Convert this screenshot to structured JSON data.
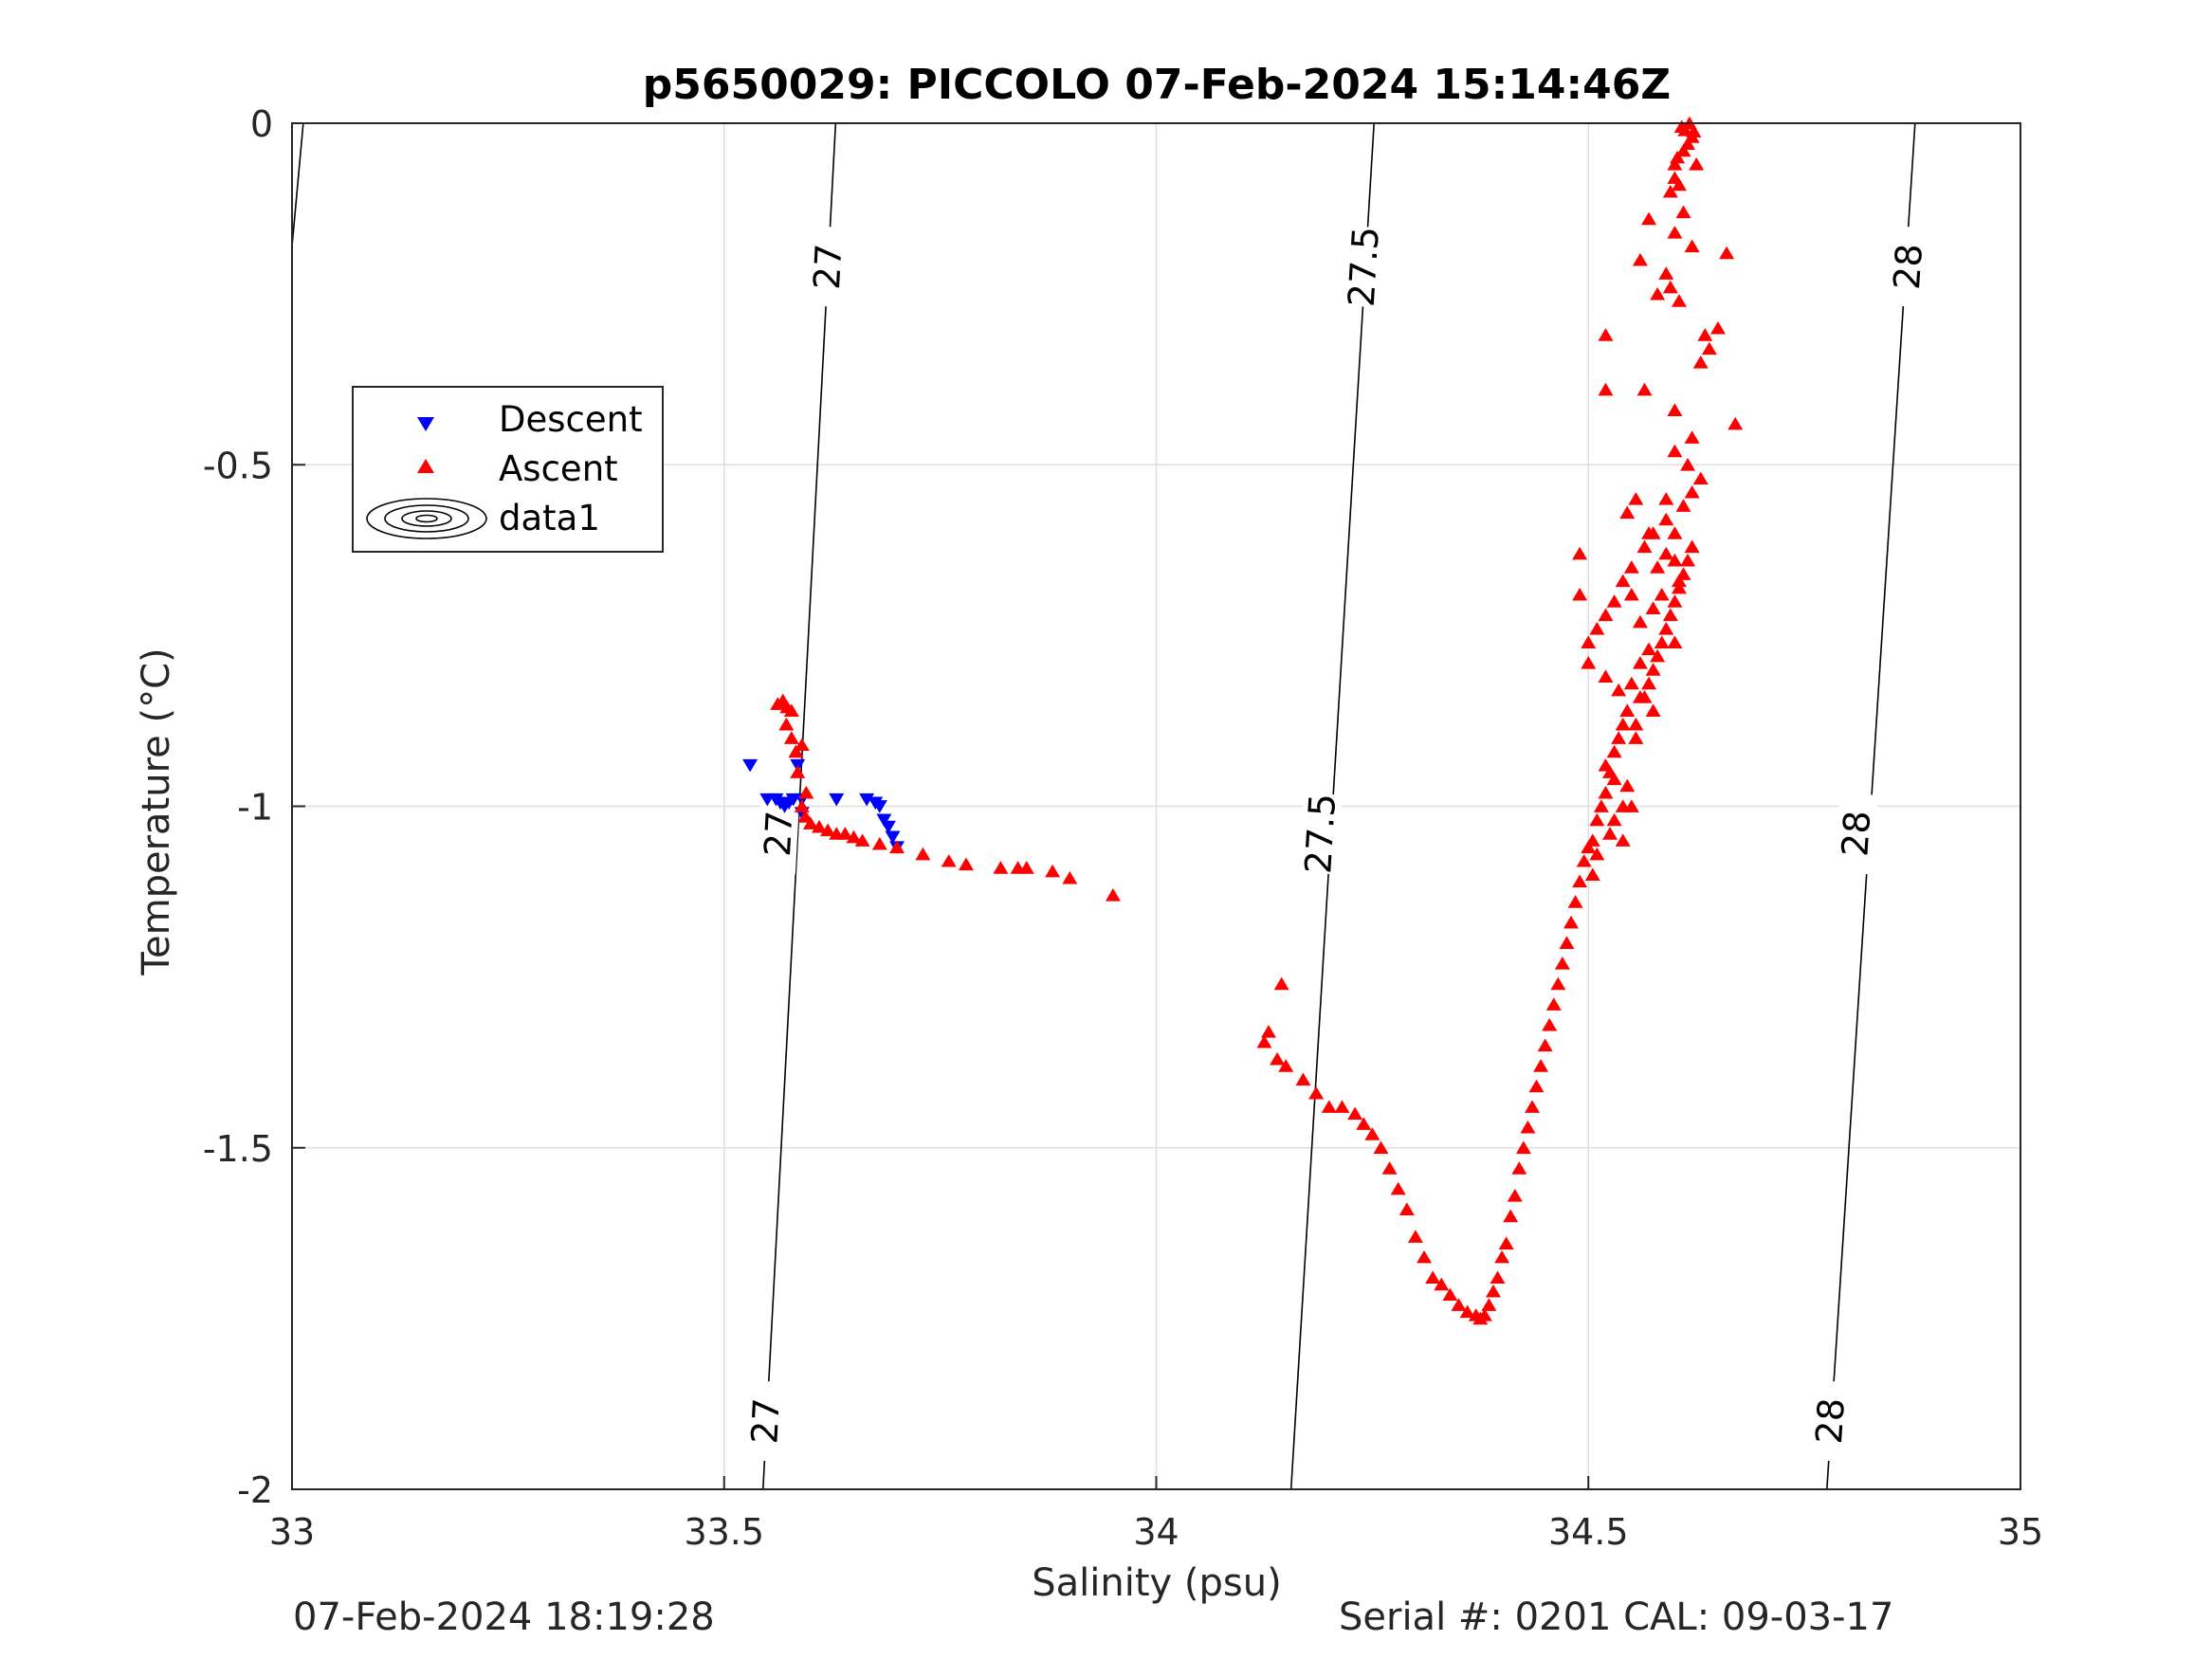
{
  "chart_data": {
    "type": "scatter",
    "title": "p5650029: PICCOLO 07-Feb-2024 15:14:46Z",
    "xlabel": "Salinity (psu)",
    "ylabel": "Temperature (°C)",
    "xlim": [
      33,
      35
    ],
    "ylim": [
      -2,
      0
    ],
    "xticks": [
      33,
      33.5,
      34,
      34.5,
      35
    ],
    "xtick_labels": [
      "33",
      "33.5",
      "34",
      "34.5",
      "35"
    ],
    "yticks": [
      0,
      -0.5,
      -1,
      -1.5,
      -2
    ],
    "ytick_labels": [
      "0",
      "-0.5",
      "-1",
      "-1.5",
      "-2"
    ],
    "grid": true,
    "legend": {
      "placement": "upper-left",
      "entries": [
        "Descent",
        "Ascent",
        "data1"
      ]
    },
    "colors": {
      "descent": "#0000ff",
      "ascent": "#ff0000",
      "contour": "#000000",
      "grid": "#dfdfdf"
    },
    "contours": [
      {
        "label": "27",
        "points": [
          [
            33.545,
            -2.0
          ],
          [
            33.629,
            0.0
          ]
        ],
        "label_positions": [
          [
            33.548,
            -1.9
          ],
          [
            33.563,
            -1.04
          ],
          [
            33.62,
            -0.21
          ]
        ]
      },
      {
        "label": "27.5",
        "points": [
          [
            34.156,
            -2.0
          ],
          [
            34.252,
            0.0
          ]
        ],
        "label_positions": [
          [
            34.19,
            -1.04
          ],
          [
            34.24,
            -0.21
          ]
        ]
      },
      {
        "label": "28",
        "points": [
          [
            34.776,
            -2.0
          ],
          [
            34.878,
            0.0
          ]
        ],
        "label_positions": [
          [
            34.78,
            -1.9
          ],
          [
            34.81,
            -1.04
          ],
          [
            34.87,
            -0.21
          ]
        ]
      },
      {
        "label": "",
        "points": [
          [
            33.0,
            -0.18
          ],
          [
            33.013,
            0.0
          ]
        ],
        "label_positions": []
      }
    ],
    "series": [
      {
        "name": "Descent",
        "marker": "triangle-down",
        "points": [
          [
            33.53,
            -0.94
          ],
          [
            33.55,
            -0.99
          ],
          [
            33.56,
            -0.99
          ],
          [
            33.565,
            -0.995
          ],
          [
            33.57,
            -1.0
          ],
          [
            33.575,
            -0.995
          ],
          [
            33.58,
            -0.99
          ],
          [
            33.585,
            -0.94
          ],
          [
            33.59,
            -0.99
          ],
          [
            33.63,
            -0.99
          ],
          [
            33.665,
            -0.99
          ],
          [
            33.675,
            -0.995
          ],
          [
            33.68,
            -1.0
          ],
          [
            33.685,
            -1.02
          ],
          [
            33.69,
            -1.03
          ],
          [
            33.695,
            -1.045
          ],
          [
            33.7,
            -1.06
          ],
          [
            33.59,
            -1.01
          ]
        ]
      },
      {
        "name": "Ascent",
        "marker": "triangle-up",
        "points": [
          [
            33.562,
            -0.85
          ],
          [
            33.568,
            -0.845
          ],
          [
            33.573,
            -0.855
          ],
          [
            33.578,
            -0.86
          ],
          [
            33.572,
            -0.88
          ],
          [
            33.578,
            -0.9
          ],
          [
            33.583,
            -0.92
          ],
          [
            33.59,
            -0.91
          ],
          [
            33.585,
            -0.95
          ],
          [
            33.595,
            -0.98
          ],
          [
            33.59,
            -1.0
          ],
          [
            33.594,
            -1.015
          ],
          [
            33.6,
            -1.025
          ],
          [
            33.61,
            -1.03
          ],
          [
            33.62,
            -1.035
          ],
          [
            33.63,
            -1.04
          ],
          [
            33.64,
            -1.04
          ],
          [
            33.65,
            -1.045
          ],
          [
            33.66,
            -1.05
          ],
          [
            33.68,
            -1.055
          ],
          [
            33.7,
            -1.06
          ],
          [
            33.73,
            -1.07
          ],
          [
            33.76,
            -1.08
          ],
          [
            33.78,
            -1.085
          ],
          [
            33.82,
            -1.09
          ],
          [
            33.84,
            -1.09
          ],
          [
            33.85,
            -1.09
          ],
          [
            33.88,
            -1.095
          ],
          [
            33.9,
            -1.105
          ],
          [
            33.95,
            -1.13
          ],
          [
            34.13,
            -1.33
          ],
          [
            34.125,
            -1.345
          ],
          [
            34.145,
            -1.26
          ],
          [
            34.14,
            -1.37
          ],
          [
            34.15,
            -1.38
          ],
          [
            34.17,
            -1.4
          ],
          [
            34.185,
            -1.42
          ],
          [
            34.2,
            -1.44
          ],
          [
            34.215,
            -1.44
          ],
          [
            34.23,
            -1.45
          ],
          [
            34.24,
            -1.465
          ],
          [
            34.25,
            -1.48
          ],
          [
            34.26,
            -1.5
          ],
          [
            34.27,
            -1.53
          ],
          [
            34.28,
            -1.56
          ],
          [
            34.29,
            -1.59
          ],
          [
            34.3,
            -1.63
          ],
          [
            34.31,
            -1.66
          ],
          [
            34.32,
            -1.69
          ],
          [
            34.33,
            -1.7
          ],
          [
            34.34,
            -1.715
          ],
          [
            34.35,
            -1.73
          ],
          [
            34.36,
            -1.74
          ],
          [
            34.37,
            -1.745
          ],
          [
            34.375,
            -1.75
          ],
          [
            34.38,
            -1.745
          ],
          [
            34.385,
            -1.73
          ],
          [
            34.39,
            -1.71
          ],
          [
            34.395,
            -1.69
          ],
          [
            34.4,
            -1.66
          ],
          [
            34.405,
            -1.64
          ],
          [
            34.41,
            -1.6
          ],
          [
            34.415,
            -1.57
          ],
          [
            34.42,
            -1.53
          ],
          [
            34.425,
            -1.5
          ],
          [
            34.43,
            -1.47
          ],
          [
            34.435,
            -1.44
          ],
          [
            34.44,
            -1.41
          ],
          [
            34.445,
            -1.38
          ],
          [
            34.45,
            -1.35
          ],
          [
            34.455,
            -1.32
          ],
          [
            34.46,
            -1.29
          ],
          [
            34.465,
            -1.26
          ],
          [
            34.47,
            -1.23
          ],
          [
            34.475,
            -1.2
          ],
          [
            34.48,
            -1.17
          ],
          [
            34.485,
            -1.14
          ],
          [
            34.49,
            -1.11
          ],
          [
            34.495,
            -1.08
          ],
          [
            34.5,
            -1.06
          ],
          [
            34.505,
            -1.05
          ],
          [
            34.51,
            -1.02
          ],
          [
            34.515,
            -1.0
          ],
          [
            34.52,
            -0.98
          ],
          [
            34.525,
            -0.95
          ],
          [
            34.53,
            -0.92
          ],
          [
            34.535,
            -0.9
          ],
          [
            34.54,
            -0.88
          ],
          [
            34.52,
            -0.94
          ],
          [
            34.53,
            -1.02
          ],
          [
            34.545,
            -0.97
          ],
          [
            34.55,
            -1.0
          ],
          [
            34.54,
            -1.05
          ],
          [
            34.535,
            -0.83
          ],
          [
            34.52,
            -0.81
          ],
          [
            34.545,
            -0.86
          ],
          [
            34.555,
            -0.88
          ],
          [
            34.565,
            -0.84
          ],
          [
            34.57,
            -0.82
          ],
          [
            34.575,
            -0.8
          ],
          [
            34.58,
            -0.78
          ],
          [
            34.585,
            -0.76
          ],
          [
            34.59,
            -0.74
          ],
          [
            34.595,
            -0.72
          ],
          [
            34.6,
            -0.7
          ],
          [
            34.605,
            -0.68
          ],
          [
            34.61,
            -0.66
          ],
          [
            34.615,
            -0.64
          ],
          [
            34.62,
            -0.62
          ],
          [
            34.6,
            -0.6
          ],
          [
            34.59,
            -0.58
          ],
          [
            34.61,
            -0.56
          ],
          [
            34.62,
            -0.54
          ],
          [
            34.63,
            -0.52
          ],
          [
            34.615,
            -0.5
          ],
          [
            34.6,
            -0.48
          ],
          [
            34.62,
            -0.46
          ],
          [
            34.59,
            -0.55
          ],
          [
            34.575,
            -0.6
          ],
          [
            34.565,
            -0.62
          ],
          [
            34.55,
            -0.65
          ],
          [
            34.54,
            -0.67
          ],
          [
            34.53,
            -0.7
          ],
          [
            34.52,
            -0.72
          ],
          [
            34.51,
            -0.74
          ],
          [
            34.55,
            -0.69
          ],
          [
            34.56,
            -0.73
          ],
          [
            34.575,
            -0.71
          ],
          [
            34.58,
            -0.65
          ],
          [
            34.545,
            -0.57
          ],
          [
            34.555,
            -0.55
          ],
          [
            34.57,
            -0.6
          ],
          [
            34.49,
            -0.63
          ],
          [
            34.49,
            -0.69
          ],
          [
            34.5,
            -0.76
          ],
          [
            34.5,
            -0.79
          ],
          [
            34.565,
            -0.39
          ],
          [
            34.52,
            -0.31
          ],
          [
            34.52,
            -0.39
          ],
          [
            34.6,
            -0.42
          ],
          [
            34.63,
            -0.35
          ],
          [
            34.64,
            -0.33
          ],
          [
            34.635,
            -0.31
          ],
          [
            34.65,
            -0.3
          ],
          [
            34.67,
            -0.44
          ],
          [
            34.605,
            -0.26
          ],
          [
            34.59,
            -0.22
          ],
          [
            34.595,
            -0.24
          ],
          [
            34.58,
            -0.25
          ],
          [
            34.56,
            -0.2
          ],
          [
            34.57,
            -0.14
          ],
          [
            34.6,
            -0.16
          ],
          [
            34.61,
            -0.13
          ],
          [
            34.62,
            -0.18
          ],
          [
            34.66,
            -0.19
          ],
          [
            34.595,
            -0.1
          ],
          [
            34.605,
            -0.09
          ],
          [
            34.6,
            -0.06
          ],
          [
            34.61,
            -0.04
          ],
          [
            34.615,
            -0.03
          ],
          [
            34.62,
            -0.02
          ],
          [
            34.612,
            -0.01
          ],
          [
            34.617,
            0.0
          ],
          [
            34.608,
            -0.005
          ],
          [
            34.622,
            -0.012
          ],
          [
            34.603,
            -0.05
          ],
          [
            34.6,
            -0.08
          ],
          [
            34.625,
            -0.06
          ],
          [
            34.56,
            -0.79
          ],
          [
            34.57,
            -0.77
          ],
          [
            34.56,
            -0.84
          ],
          [
            34.575,
            -0.86
          ],
          [
            34.55,
            -0.82
          ],
          [
            34.555,
            -0.9
          ],
          [
            34.53,
            -0.96
          ],
          [
            34.54,
            -1.0
          ],
          [
            34.525,
            -1.04
          ],
          [
            34.51,
            -1.07
          ],
          [
            34.505,
            -1.1
          ],
          [
            34.6,
            -0.76
          ],
          [
            34.585,
            -0.69
          ],
          [
            34.6,
            -0.64
          ],
          [
            34.59,
            -0.63
          ],
          [
            34.605,
            -0.67
          ]
        ]
      }
    ]
  },
  "footer": {
    "left": "07-Feb-2024 18:19:28",
    "right": "Serial #: 0201  CAL: 09-03-17"
  }
}
